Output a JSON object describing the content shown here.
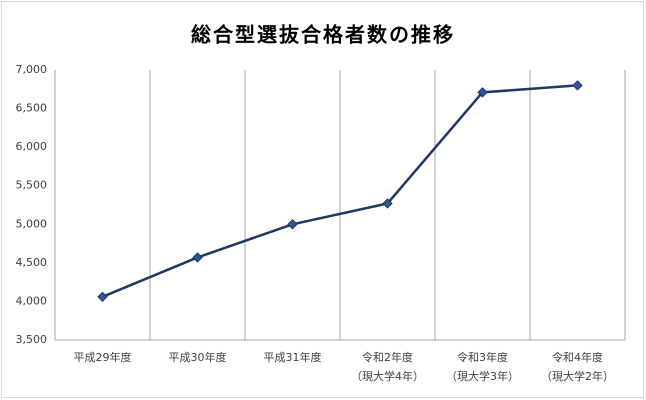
{
  "chart_data": {
    "type": "line",
    "title": "総合型選抜合格者数の推移",
    "categories": [
      {
        "label": "平成29年度"
      },
      {
        "label": "平成30年度"
      },
      {
        "label": "平成31年度"
      },
      {
        "label": "令和2年度",
        "note": "（現大学4年）"
      },
      {
        "label": "令和3年度",
        "note": "（現大学3年）"
      },
      {
        "label": "令和4年度",
        "note": "（現大学2年）"
      }
    ],
    "values": [
      4060,
      4570,
      5000,
      5270,
      6710,
      6800
    ],
    "color": "#1f3864",
    "marker_color": "#2f5597",
    "ylim": [
      3500,
      7000
    ],
    "yticks": [
      {
        "value": 3500,
        "label": "3,500"
      },
      {
        "value": 4000,
        "label": "4,000"
      },
      {
        "value": 4500,
        "label": "4,500"
      },
      {
        "value": 5000,
        "label": "5,000"
      },
      {
        "value": 5500,
        "label": "5,500"
      },
      {
        "value": 6000,
        "label": "6,000"
      },
      {
        "value": 6500,
        "label": "6,500"
      },
      {
        "value": 7000,
        "label": "7,000"
      }
    ],
    "grid": true
  }
}
